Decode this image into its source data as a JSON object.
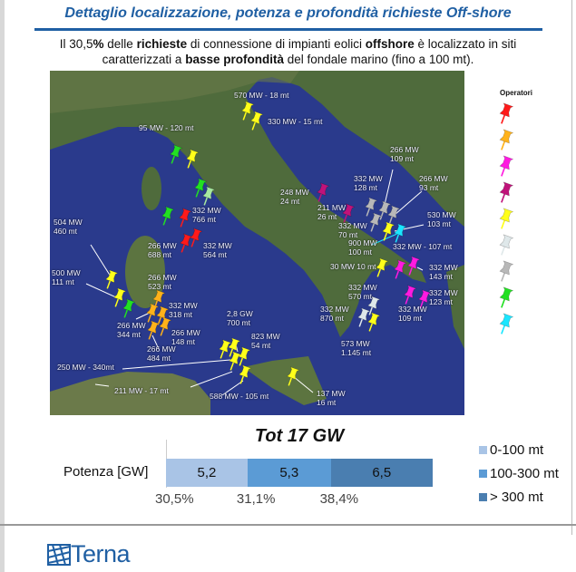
{
  "header": {
    "title": "Dettaglio localizzazione, potenza e profondità richieste Off-shore",
    "subtitle_parts": [
      "Il 30,5",
      "%",
      " delle ",
      "richieste",
      " di connessione di impianti eolici ",
      "offshore",
      " è localizzato in siti caratterizzati a ",
      "basse profondità",
      " del fondale marino (fino a 100 mt)."
    ]
  },
  "map": {
    "labels": [
      "570 MW - 18 mt",
      "330 MW - 15 mt",
      "95 MW - 120 mt",
      "248 MW\n24 mt",
      "332 MW\n766 mt",
      "504 MW\n460 mt",
      "266 MW\n688 mt",
      "332 MW\n564 mt",
      "266 MW\n109 mt",
      "332 MW\n128 mt",
      "266 MW\n93 mt",
      "211 MW\n26 mt",
      "530 MW\n103 mt",
      "332 MW\n70 mt",
      "900 MW\n100 mt",
      "332 MW - 107 mt",
      "30 MW 10 mt",
      "332 MW\n143 mt",
      "500 MW\n111 mt",
      "266 MW\n523 mt",
      "332 MW\n318 mt",
      "332 MW\n123 mt",
      "332 MW\n570 mt",
      "332 MW\n870 mt",
      "332 MW\n109 mt",
      "2,8 GW\n700 mt",
      "266 MW\n344 mt",
      "266 MW\n148 mt",
      "823 MW\n54 mt",
      "573 MW\n1.145 mt",
      "266 MW\n484 mt",
      "250 MW - 340mt",
      "211 MW - 17 mt",
      "588 MW - 105 mt",
      "137 MW\n16 mt"
    ],
    "pin_colors": {
      "red": "#ff1a1a",
      "orange": "#ffb21a",
      "magenta": "#ff1ae0",
      "dark_magenta": "#c0127a",
      "yellow": "#ffff1a",
      "light_gray": "#dfe8ea",
      "gray": "#b8b8b8",
      "green": "#22e022",
      "cyan": "#1ae6ff",
      "light_green": "#a8e8a0"
    }
  },
  "legend": {
    "title": "Operatori",
    "operators": [
      "red",
      "orange",
      "magenta",
      "dark_magenta",
      "yellow",
      "light_gray",
      "gray",
      "green",
      "cyan"
    ]
  },
  "chart_data": {
    "type": "bar",
    "orientation": "horizontal-stacked",
    "title": "Tot 17 GW",
    "categories": [
      "Potenza [GW]"
    ],
    "series": [
      {
        "name": "0-100 mt",
        "values": [
          5.2
        ],
        "label": "5,2",
        "share": "30,5%",
        "color": "#a9c4e6"
      },
      {
        "name": "100-300 mt",
        "values": [
          5.3
        ],
        "label": "5,3",
        "share": "31,1%",
        "color": "#5b9bd5"
      },
      {
        "name": "> 300 mt",
        "values": [
          6.5
        ],
        "label": "6,5",
        "share": "38,4%",
        "color": "#4a7eb0"
      }
    ],
    "legend_position": "right"
  },
  "footer": {
    "logo_text": "Terna"
  }
}
